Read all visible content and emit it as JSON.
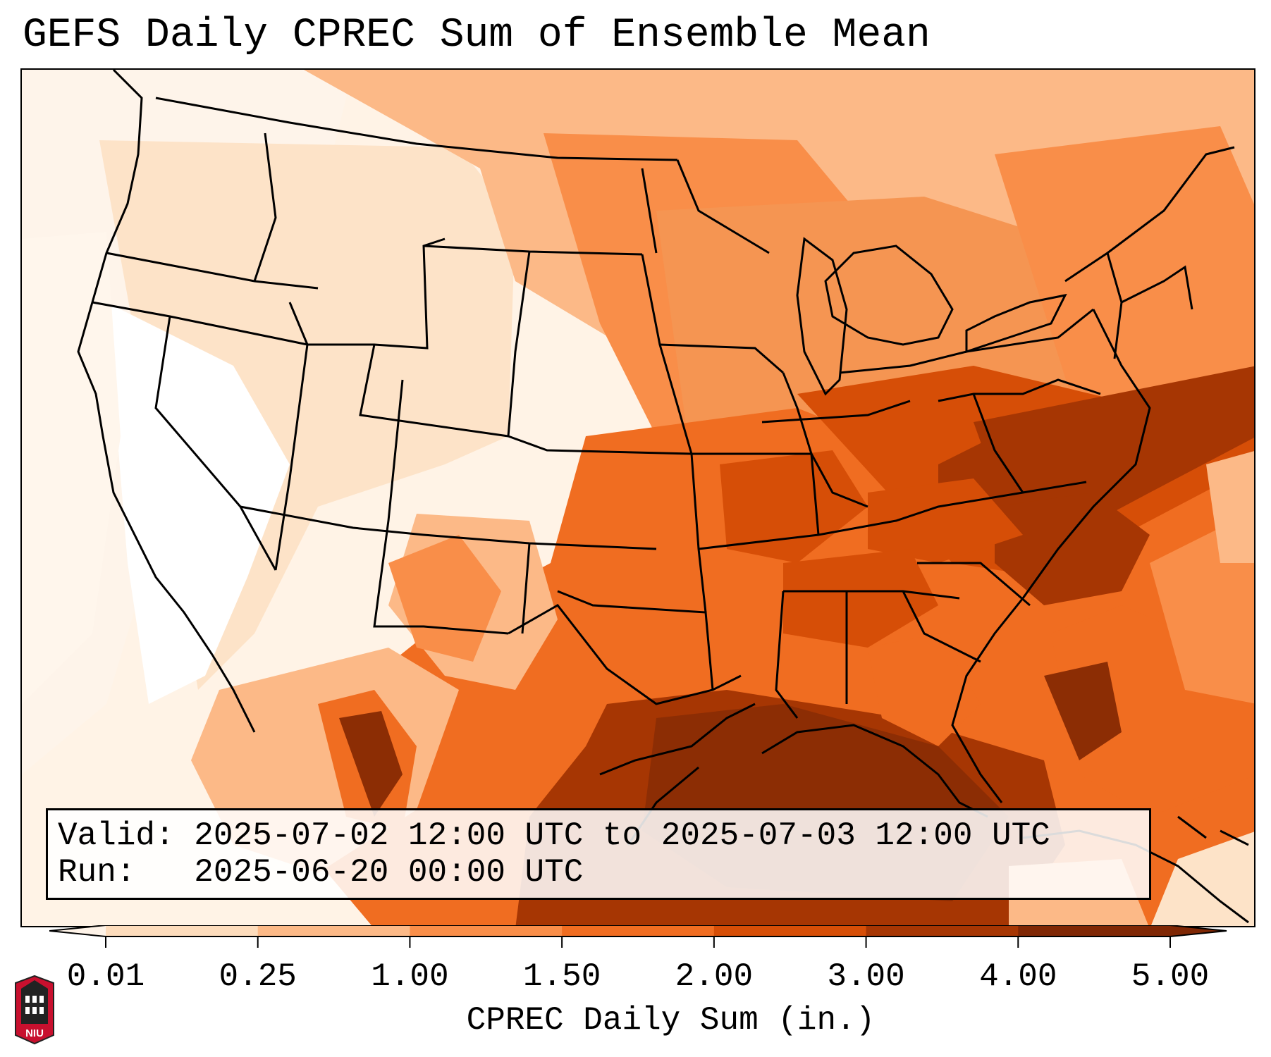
{
  "title": "GEFS Daily CPREC Sum of Ensemble Mean",
  "info": {
    "valid_label": "Valid:",
    "valid_value": "2025-07-02 12:00 UTC to 2025-07-03 12:00 UTC",
    "run_label": "Run:",
    "run_value": "2025-06-20 00:00 UTC"
  },
  "colorbar": {
    "label": "CPREC Daily Sum (in.)",
    "ticks": [
      "0.01",
      "0.25",
      "1.00",
      "1.50",
      "2.00",
      "3.00",
      "4.00",
      "5.00"
    ],
    "colors": [
      "#fef3e8",
      "#fddcbc",
      "#fcb987",
      "#f98e49",
      "#f06d21",
      "#d64e07",
      "#a63603",
      "#7f2704"
    ],
    "extend": "both"
  },
  "logo": {
    "text": "NIU",
    "icon": "university-tower-icon"
  },
  "map": {
    "region": "Contiguous United States",
    "colors": {
      "ocean_low": "#fef3e8",
      "very_low": "#fff7ef",
      "low": "#fddcbc",
      "moderate": "#fcb987",
      "medium": "#f98e49",
      "high": "#f06d21",
      "very_high": "#d64e07",
      "extreme": "#8c2d04",
      "border": "#000000"
    }
  }
}
